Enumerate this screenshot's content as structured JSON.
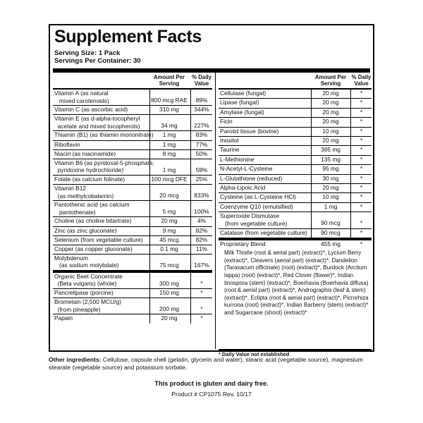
{
  "title": "Supplement Facts",
  "serving_size": "Serving Size: 1 Pack",
  "servings_per_container": "Servings Per Container: 30",
  "header": {
    "amount": "Amount Per Serving",
    "dv": "% Daily Value"
  },
  "left_rows": [
    {
      "lines": [
        "Vitamin A (as natural",
        "   mixed carotenoids)"
      ],
      "amount": "800 mcg RAE",
      "dv": "89%"
    },
    {
      "lines": [
        "Vitamin C (as ascorbic acid)"
      ],
      "amount": "310 mg",
      "dv": "344%"
    },
    {
      "lines": [
        "Vitamin E (as d-alpha-tocopheryl",
        "  acetate and mixed tocopherols)"
      ],
      "amount": "34 mg",
      "dv": "227%"
    },
    {
      "lines": [
        "Thiamin (B1) (as thiamin mononitrate)"
      ],
      "amount": "1 mg",
      "dv": "83%"
    },
    {
      "lines": [
        "Riboflavin"
      ],
      "amount": "1 mg",
      "dv": "77%"
    },
    {
      "lines": [
        "Niacin (as niacinamide)"
      ],
      "amount": "8 mg",
      "dv": "50%"
    },
    {
      "lines": [
        "Vitamin B6 (as pyridoxal-5-phosphate,",
        "  pyridoxine hydrochloride)"
      ],
      "amount": "1 mg",
      "dv": "59%"
    },
    {
      "lines": [
        "Folate (as calcium folinate)"
      ],
      "amount": "100 mcg DFE",
      "dv": "25%"
    },
    {
      "lines": [
        "Vitamin B12",
        "  (as methylcobalamin)"
      ],
      "amount": "20 mcg",
      "dv": "833%"
    },
    {
      "lines": [
        "Pantothenic acid (as calcium",
        "   pantothenate)"
      ],
      "amount": "5 mg",
      "dv": "100%"
    },
    {
      "lines": [
        "Choline (as choline bitartrate)"
      ],
      "amount": "20 mg",
      "dv": "4%"
    },
    {
      "lines": [
        "Zinc (as zinc gluconate)"
      ],
      "amount": "9 mg",
      "dv": "82%"
    },
    {
      "lines": [
        "Selenium (from vegetable culture)"
      ],
      "amount": "45 mcg",
      "dv": "82%"
    },
    {
      "lines": [
        "Copper (as copper gluconate)"
      ],
      "amount": "0.1 mg",
      "dv": "11%"
    },
    {
      "lines": [
        "Molybdenum",
        "   (as sodium molybdate)"
      ],
      "amount": "75 mcg",
      "dv": "167%"
    }
  ],
  "left_rows_2": [
    {
      "lines": [
        "Organic Beet Concentrate",
        "  (Beta vulgaris) (whole)"
      ],
      "amount": "300 mg",
      "dv": "*"
    },
    {
      "lines": [
        "Pancrelipase (porcine)"
      ],
      "amount": "150 mg",
      "dv": "*"
    },
    {
      "lines": [
        "Bromelain (2,500 MCU/g)",
        "  (from pineapple)"
      ],
      "amount": "200 mg",
      "dv": "*"
    },
    {
      "lines": [
        "Papain"
      ],
      "amount": "20 mg",
      "dv": "*"
    }
  ],
  "right_rows": [
    {
      "lines": [
        "Cellulase (fungal)"
      ],
      "amount": "20 mg",
      "dv": "*"
    },
    {
      "lines": [
        "Lipase (fungal)"
      ],
      "amount": "20 mg",
      "dv": "*"
    },
    {
      "lines": [
        "Amylase (fungal)"
      ],
      "amount": "20 mg",
      "dv": "*"
    },
    {
      "lines": [
        "Ficin"
      ],
      "amount": "20 mg",
      "dv": "*"
    },
    {
      "lines": [
        "Parotid tissue (bovine)"
      ],
      "amount": "10 mg",
      "dv": "*"
    },
    {
      "lines": [
        "Inositol"
      ],
      "amount": "20 mg",
      "dv": "*"
    },
    {
      "lines": [
        "Taurine"
      ],
      "amount": "385 mg",
      "dv": "*"
    },
    {
      "lines": [
        "L-Methionine"
      ],
      "amount": "135 mg",
      "dv": "*"
    },
    {
      "lines": [
        "N-Acetyl-L-Cysteine"
      ],
      "amount": "95 mg",
      "dv": "*"
    },
    {
      "lines": [
        "L-Glutathione (reduced)"
      ],
      "amount": "30 mg",
      "dv": "*"
    },
    {
      "lines": [
        "Alpha-Lipoic Acid"
      ],
      "amount": "20 mg",
      "dv": "*"
    },
    {
      "lines": [
        "Cysteine (as L-Cysteine HCl)"
      ],
      "amount": "10 mg",
      "dv": "*"
    },
    {
      "lines": [
        "Coenzyme Q10 (emulsified)"
      ],
      "amount": "1 mg",
      "dv": "*"
    },
    {
      "lines": [
        "Superoxide Dismutase",
        "   (from vegetable culture)"
      ],
      "amount": "90 mcg",
      "dv": "*"
    },
    {
      "lines": [
        "Catalase (from vegetable culture)"
      ],
      "amount": "90 mcg",
      "dv": "*"
    }
  ],
  "blend": {
    "name": "Proprietary Blend",
    "amount": "455 mg",
    "dv": "*",
    "description": "Milk Thistle (root & aerial part) (extract)*, Lycium Berry (extract)*, Cleavers (aerial part) (extract)*, Dandelion (Taraxacum officinale) (root) (extract)*, Burdock (Arctium lappa) (root) (extract)*, Red Clover (flower)*, Indian tinospora (stem) (extract)*, Boerhavia (Boerhavia diffusa) (root & aerial part) (extract)*, Andrographis (leaf & stem) (extract)*, Eclipta (root & aerial part) (extract)*, Picrorhiza kurrooa (root) (extract)*, Indian Barberry (stem) (extract)* and Sugarcane (shoot) (extract)*"
  },
  "dv_note": "* Daily Value not established",
  "other_ingredients": {
    "label": "Other ingredients:",
    "text": " Cellulose, capsule shell (gelatin, glycerin and water), stearic acid (vegetable source), magnesium stearate (vegetable source) and potassium sorbate."
  },
  "gluten_note": "This product is gluten and dairy free.",
  "product_number": "Product # CP1075  Rev. 10/17"
}
